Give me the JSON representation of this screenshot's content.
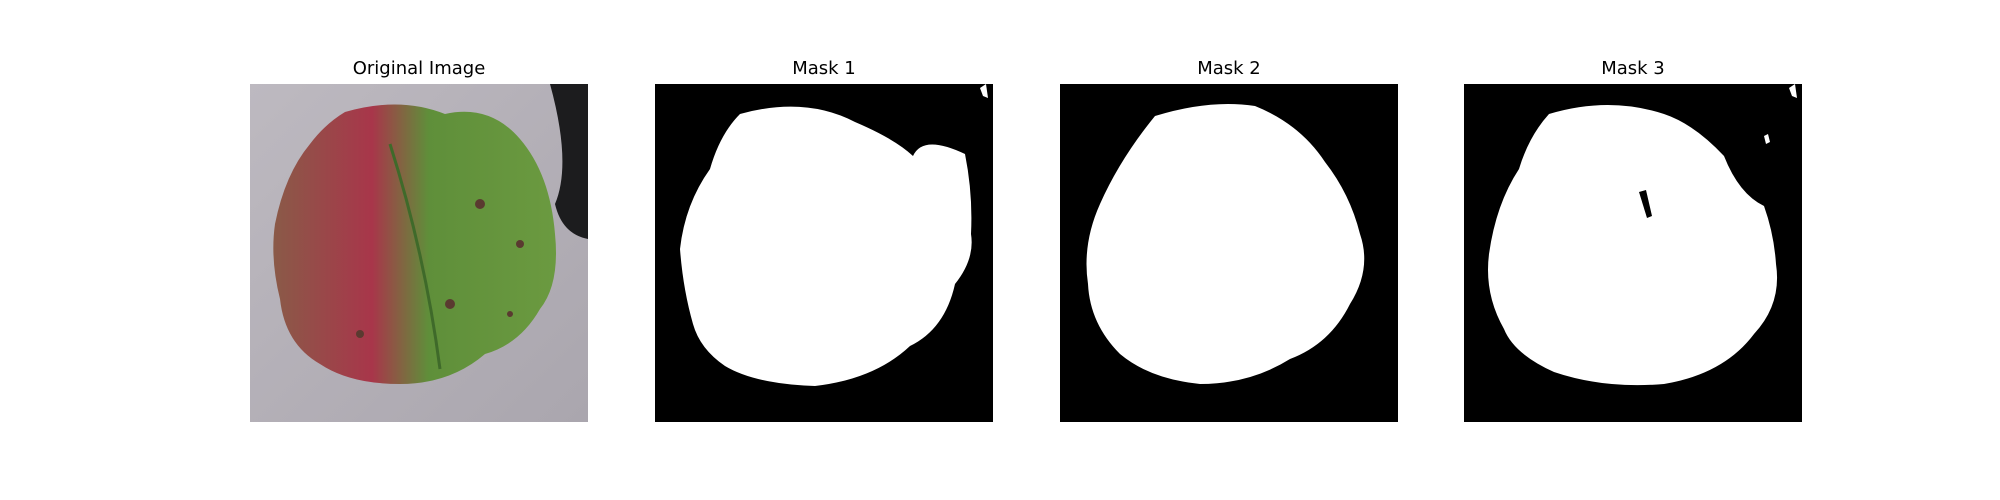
{
  "figure": {
    "panels": [
      {
        "title": "Original Image"
      },
      {
        "title": "Mask 1"
      },
      {
        "title": "Mask 2"
      },
      {
        "title": "Mask 3"
      }
    ]
  },
  "colors": {
    "background": "#ffffff",
    "mask_background": "#000000",
    "mask_foreground": "#ffffff",
    "photo_surface": "#b5b1b8",
    "leaf_green": "#5f8f3a",
    "leaf_red": "#a8364a",
    "leaf_brown": "#7a5a44"
  }
}
